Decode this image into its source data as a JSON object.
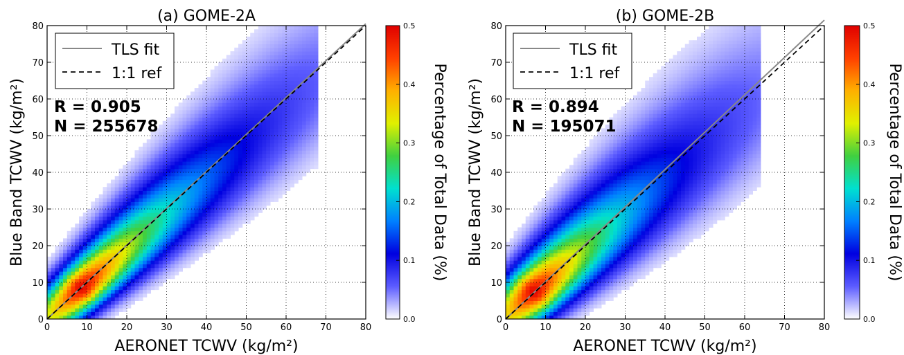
{
  "figure": {
    "colorbar_label": "Percentage of Total Data (%)",
    "colorbar_ticks": [
      0.0,
      0.1,
      0.2,
      0.3,
      0.4,
      0.5
    ],
    "colorbar_tick_labels": [
      "0.0",
      "0.1",
      "0.2",
      "0.3",
      "0.4",
      "0.5"
    ],
    "colormap": [
      "#ffffff",
      "#5c5cff",
      "#0000e0",
      "#0080ff",
      "#00e0d0",
      "#40d040",
      "#e0f000",
      "#ffb000",
      "#ff4000",
      "#e00000"
    ]
  },
  "chart_data": [
    {
      "type": "heatmap",
      "title": "(a) GOME-2A",
      "xlabel": "AERONET TCWV (kg/m²)",
      "ylabel": "Blue Band TCWV (kg/m²)",
      "xlim": [
        0,
        80
      ],
      "ylim": [
        0,
        80
      ],
      "xticks": [
        0,
        10,
        20,
        30,
        40,
        50,
        60,
        70,
        80
      ],
      "yticks": [
        0,
        10,
        20,
        30,
        40,
        50,
        60,
        70,
        80
      ],
      "xtick_labels": [
        "0",
        "10",
        "20",
        "30",
        "40",
        "50",
        "60",
        "70",
        "80"
      ],
      "ytick_labels": [
        "0",
        "10",
        "20",
        "30",
        "40",
        "50",
        "60",
        "70",
        "80"
      ],
      "grid": true,
      "legend": {
        "position": "top-left",
        "entries": [
          {
            "label": "TLS fit",
            "style": "solid",
            "color": "#888888"
          },
          {
            "label": "1:1 ref",
            "style": "dashed",
            "color": "#000000"
          }
        ]
      },
      "annotations": [
        "R = 0.905",
        "N = 255678"
      ],
      "tls_fit": {
        "x": [
          0,
          80
        ],
        "y": [
          0,
          80.5
        ]
      },
      "reference_line": {
        "x": [
          0,
          80
        ],
        "y": [
          0,
          80
        ]
      },
      "density": {
        "peak_x": 8.5,
        "peak_y": 8.5,
        "peak_value": 0.5,
        "spread_along": 0.12,
        "spread_across": 4.2,
        "range_x": [
          0,
          62
        ]
      }
    },
    {
      "type": "heatmap",
      "title": "(b) GOME-2B",
      "xlabel": "AERONET TCWV (kg/m²)",
      "ylabel": "Blue Band TCWV (kg/m²)",
      "xlim": [
        0,
        80
      ],
      "ylim": [
        0,
        80
      ],
      "xticks": [
        0,
        10,
        20,
        30,
        40,
        50,
        60,
        70,
        80
      ],
      "yticks": [
        0,
        10,
        20,
        30,
        40,
        50,
        60,
        70,
        80
      ],
      "xtick_labels": [
        "0",
        "10",
        "20",
        "30",
        "40",
        "50",
        "60",
        "70",
        "80"
      ],
      "ytick_labels": [
        "0",
        "10",
        "20",
        "30",
        "40",
        "50",
        "60",
        "70",
        "80"
      ],
      "grid": true,
      "legend": {
        "position": "top-left",
        "entries": [
          {
            "label": "TLS fit",
            "style": "solid",
            "color": "#888888"
          },
          {
            "label": "1:1 ref",
            "style": "dashed",
            "color": "#000000"
          }
        ]
      },
      "annotations": [
        "R = 0.894",
        "N = 195071"
      ],
      "tls_fit": {
        "x": [
          0,
          80
        ],
        "y": [
          0,
          81.5
        ]
      },
      "reference_line": {
        "x": [
          0,
          80
        ],
        "y": [
          0,
          80
        ]
      },
      "density": {
        "peak_x": 7,
        "peak_y": 7.5,
        "peak_value": 0.5,
        "spread_along": 0.13,
        "spread_across": 4.8,
        "range_x": [
          0,
          58
        ]
      }
    }
  ]
}
